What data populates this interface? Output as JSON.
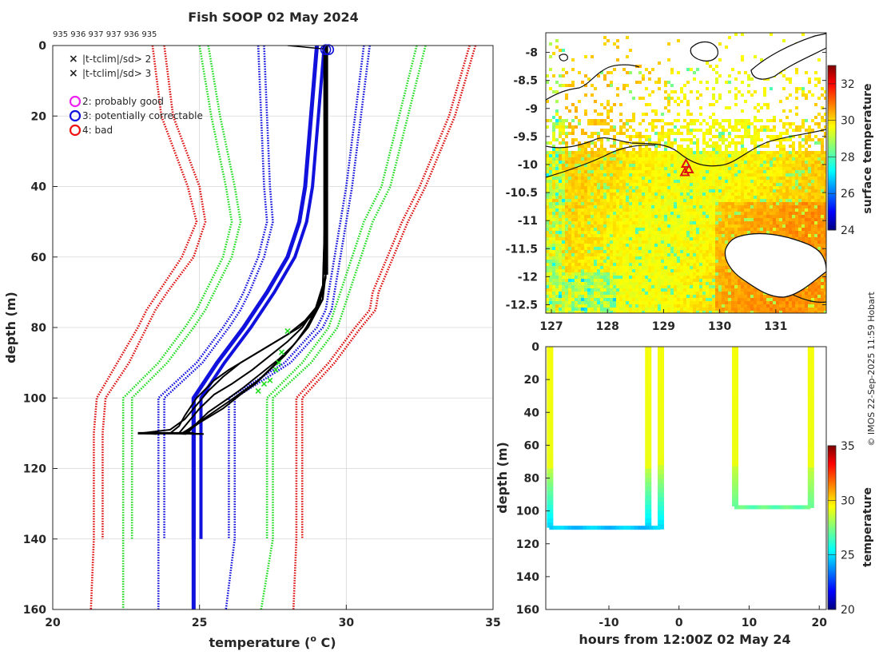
{
  "title": "Fish SOOP 02 May 2024",
  "copyright": "© IMOS 22-Sep-2025 11:59 Hobart",
  "chart_data": [
    {
      "type": "line",
      "id": "profiles",
      "title": "Fish SOOP 02 May 2024",
      "xlabel": "temperature (",
      "xlabel_sup": "o",
      "xlabel_end": " C)",
      "ylabel": "depth (m)",
      "xlim": [
        20,
        35
      ],
      "ylim": [
        0,
        160
      ],
      "y_reversed": true,
      "xticks": [
        20,
        25,
        30,
        35
      ],
      "yticks": [
        0,
        20,
        40,
        60,
        80,
        100,
        120,
        140,
        160
      ],
      "grid": true,
      "top_labels": "935 936 937 937 936 935",
      "legend": {
        "position": "top-left",
        "entries": [
          {
            "marker": "x",
            "color": "#22dd22",
            "label": "|t-tclim|/sd> 2"
          },
          {
            "marker": "x",
            "color": "#dd1111",
            "label": "|t-tclim|/sd> 3"
          },
          {
            "marker": "o",
            "color": "#ee22ee",
            "label": "2: probably good"
          },
          {
            "marker": "o",
            "color": "#1111dd",
            "label": "3: potentially correctable"
          },
          {
            "marker": "o",
            "color": "#ee1111",
            "label": "4: bad"
          }
        ]
      },
      "climatology_depth": [
        0,
        20,
        40,
        50,
        60,
        70,
        75,
        80,
        90,
        100,
        110,
        120,
        140
      ],
      "climatology": [
        {
          "name": "red-left-outer",
          "color": "#dd1111",
          "temps": [
            23.4,
            23.7,
            24.6,
            24.9,
            24.4,
            23.6,
            23.2,
            22.9,
            22.2,
            21.5,
            21.4,
            21.4,
            21.4
          ],
          "extend": 21.3
        },
        {
          "name": "red-left-inner",
          "color": "#dd1111",
          "temps": [
            23.8,
            24.1,
            25.0,
            25.2,
            24.8,
            23.9,
            23.5,
            23.2,
            22.6,
            21.8,
            21.7,
            21.7,
            21.7
          ]
        },
        {
          "name": "green-left-outer",
          "color": "#22dd22",
          "temps": [
            25.0,
            25.4,
            25.9,
            26.1,
            25.8,
            25.2,
            24.9,
            24.5,
            23.6,
            22.4,
            22.4,
            22.4,
            22.4
          ],
          "extend": 22.4
        },
        {
          "name": "green-left-inner",
          "color": "#22dd22",
          "temps": [
            25.3,
            25.7,
            26.2,
            26.4,
            26.1,
            25.5,
            25.2,
            24.8,
            23.9,
            22.7,
            22.7,
            22.7,
            22.7
          ]
        },
        {
          "name": "blue-left-outer",
          "color": "#1111dd",
          "temps": [
            27.0,
            27.1,
            27.2,
            27.3,
            27.0,
            26.5,
            26.2,
            25.8,
            24.9,
            23.6,
            23.6,
            23.6,
            23.6
          ],
          "extend": 23.6
        },
        {
          "name": "blue-left-inner",
          "color": "#1111dd",
          "temps": [
            27.2,
            27.3,
            27.4,
            27.5,
            27.2,
            26.7,
            26.4,
            26.0,
            25.1,
            23.8,
            23.8,
            23.8,
            23.8
          ]
        },
        {
          "name": "blue-right-inner",
          "color": "#1111dd",
          "temps": [
            30.6,
            30.3,
            30.0,
            29.8,
            29.6,
            29.4,
            29.3,
            29.0,
            27.9,
            26.0,
            26.0,
            26.0,
            26.0
          ]
        },
        {
          "name": "blue-right-outer",
          "color": "#1111dd",
          "temps": [
            30.8,
            30.5,
            30.2,
            30.0,
            29.8,
            29.6,
            29.5,
            29.2,
            28.1,
            26.2,
            26.2,
            26.2,
            26.2
          ],
          "extend": 25.9
        },
        {
          "name": "green-right-inner",
          "color": "#22dd22",
          "temps": [
            32.4,
            31.8,
            31.2,
            30.6,
            30.2,
            29.8,
            29.6,
            29.4,
            28.5,
            27.3,
            27.3,
            27.3,
            27.3
          ]
        },
        {
          "name": "green-right-outer",
          "color": "#22dd22",
          "temps": [
            32.7,
            32.1,
            31.5,
            30.9,
            30.5,
            30.1,
            29.9,
            29.7,
            28.8,
            27.5,
            27.5,
            27.5,
            27.5
          ],
          "extend": 27.1
        },
        {
          "name": "red-right-inner",
          "color": "#dd1111",
          "temps": [
            34.2,
            33.5,
            32.5,
            31.9,
            31.4,
            30.9,
            30.8,
            30.3,
            29.4,
            28.3,
            28.3,
            28.3,
            28.3
          ],
          "extend": 28.2
        },
        {
          "name": "red-right-outer",
          "color": "#dd1111",
          "temps": [
            34.4,
            33.7,
            32.7,
            32.1,
            31.6,
            31.1,
            31.0,
            30.5,
            29.6,
            28.5,
            28.5,
            28.5,
            28.5
          ]
        }
      ],
      "mean_profile": {
        "name": "mean",
        "color": "#1111dd",
        "depth": [
          0,
          20,
          40,
          50,
          60,
          70,
          80,
          90,
          100,
          140
        ],
        "temps": [
          29.0,
          28.8,
          28.6,
          28.4,
          28.0,
          27.3,
          26.5,
          25.6,
          24.8,
          24.8
        ],
        "extend": 24.8
      },
      "observed_profiles": [
        {
          "depth": [
            0,
            10,
            40,
            65,
            72,
            76,
            80,
            84,
            88,
            92,
            95,
            100,
            105,
            108,
            110
          ],
          "temps": [
            29.3,
            29.3,
            29.3,
            29.3,
            29.2,
            28.9,
            28.4,
            27.6,
            26.8,
            26.0,
            25.5,
            24.9,
            24.5,
            24.3,
            24.0
          ]
        },
        {
          "depth": [
            0,
            10,
            40,
            65,
            73,
            78,
            82,
            86,
            90,
            94,
            98,
            102,
            106,
            109,
            110
          ],
          "temps": [
            29.3,
            29.3,
            29.3,
            29.3,
            29.1,
            28.6,
            28.0,
            27.2,
            26.4,
            25.8,
            25.3,
            24.9,
            24.5,
            24.0,
            23.0
          ]
        },
        {
          "depth": [
            0,
            10,
            40,
            66,
            74,
            80,
            84,
            88,
            92,
            96,
            99,
            103,
            107,
            110
          ],
          "temps": [
            29.3,
            29.3,
            29.3,
            29.3,
            29.0,
            28.5,
            28.0,
            27.4,
            26.8,
            26.1,
            25.5,
            25.0,
            24.6,
            24.3
          ]
        },
        {
          "depth": [
            0,
            10,
            40,
            68,
            76,
            82,
            87,
            91,
            95,
            98,
            101,
            105,
            109,
            110
          ],
          "temps": [
            29.3,
            29.3,
            29.3,
            29.2,
            28.9,
            28.5,
            28.0,
            27.5,
            27.0,
            26.5,
            26.0,
            25.3,
            24.6,
            24.4
          ]
        },
        {
          "depth": [
            0,
            10,
            40,
            70,
            78,
            84,
            88,
            92,
            96,
            99,
            103,
            107,
            110
          ],
          "temps": [
            29.3,
            29.3,
            29.3,
            29.2,
            28.8,
            28.3,
            27.9,
            27.4,
            26.9,
            26.4,
            25.8,
            25.0,
            24.5
          ]
        },
        {
          "depth": [
            0,
            10,
            40,
            72,
            80,
            85,
            89,
            93,
            97,
            100,
            104,
            108,
            110
          ],
          "temps": [
            29.3,
            29.3,
            29.3,
            29.2,
            28.7,
            28.2,
            27.7,
            27.1,
            26.5,
            26.0,
            25.3,
            24.8,
            24.6
          ]
        }
      ],
      "flag_circles": [
        {
          "t": 29.3,
          "d": 0.5
        },
        {
          "t": 29.4,
          "d": 0.5
        }
      ],
      "flag_crosses": [
        {
          "t": 28.0,
          "d": 81
        },
        {
          "t": 27.8,
          "d": 87
        },
        {
          "t": 27.7,
          "d": 90
        },
        {
          "t": 27.6,
          "d": 92
        },
        {
          "t": 27.2,
          "d": 96
        },
        {
          "t": 27.0,
          "d": 98
        },
        {
          "t": 27.4,
          "d": 95
        }
      ]
    },
    {
      "type": "heatmap",
      "id": "map",
      "colorbar_label": "surface temperature",
      "colorbar_range": [
        24,
        33
      ],
      "colorbar_ticks": [
        24,
        26,
        28,
        30,
        32
      ],
      "xlim": [
        126.9,
        131.9
      ],
      "ylim": [
        -12.65,
        -7.65
      ],
      "xticks": [
        127,
        128,
        129,
        130,
        131
      ],
      "yticks": [
        -8,
        -8.5,
        -9,
        -9.5,
        -10,
        -10.5,
        -11,
        -11.5,
        -12,
        -12.5
      ],
      "track": [
        {
          "lon": 129.4,
          "lat": -10.0
        },
        {
          "lon": 129.45,
          "lat": -10.1
        },
        {
          "lon": 129.38,
          "lat": -10.15
        }
      ]
    },
    {
      "type": "scatter",
      "id": "time-depth",
      "xlabel": "hours from 12:00Z 02 May 24",
      "ylabel": "depth (m)",
      "xlim": [
        -19,
        21
      ],
      "ylim": [
        0,
        160
      ],
      "y_reversed": true,
      "xticks": [
        -10,
        0,
        10,
        20
      ],
      "yticks": [
        0,
        20,
        40,
        60,
        80,
        100,
        120,
        140,
        160
      ],
      "colorbar_label": "temperature",
      "colorbar_range": [
        20,
        35
      ],
      "colorbar_ticks": [
        20,
        25,
        30,
        35
      ],
      "casts": [
        {
          "time": -18.5,
          "max_depth": 110,
          "temp_surface": 29.3,
          "temp_bottom": 24.6
        },
        {
          "time": -4.5,
          "max_depth": 110,
          "temp_surface": 29.3,
          "temp_bottom": 24.6
        },
        {
          "time": -2.7,
          "max_depth": 111,
          "temp_surface": 29.3,
          "temp_bottom": 24.6
        },
        {
          "time": 7.9,
          "max_depth": 97,
          "temp_surface": 29.3,
          "temp_bottom": 27.0
        },
        {
          "time": 18.7,
          "max_depth": 98,
          "temp_surface": 29.3,
          "temp_bottom": 27.0
        }
      ],
      "bottom_segments": [
        {
          "t0": -18.5,
          "t1": -2.7,
          "depth": 110,
          "temp": 24.6
        },
        {
          "t0": 7.9,
          "t1": 18.7,
          "depth": 97.5,
          "temp": 27.0
        }
      ],
      "thermocline_start": 72,
      "thermocline_temp": 28.6
    }
  ]
}
